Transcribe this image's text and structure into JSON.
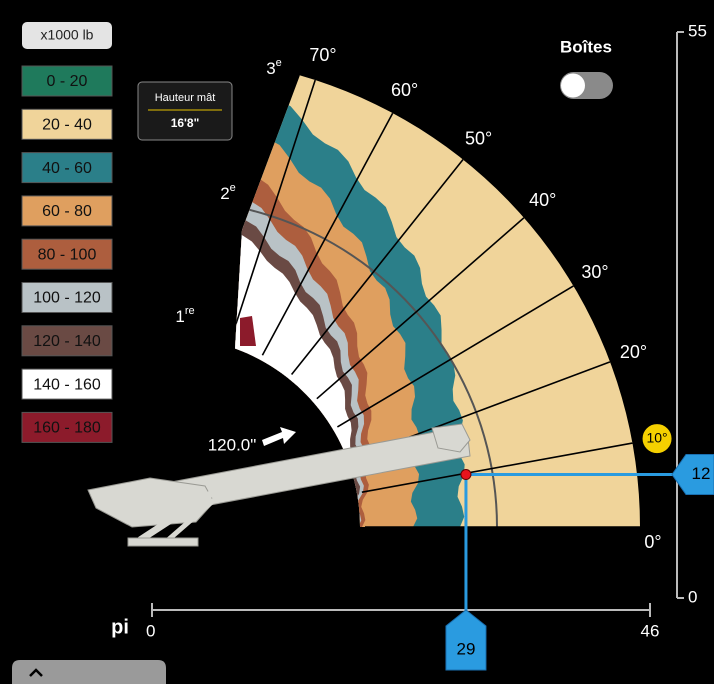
{
  "legend": {
    "title": "x1000 lb",
    "items": [
      {
        "label": "0 - 20",
        "color": "#1f7a5c"
      },
      {
        "label": "20 - 40",
        "color": "#f0d49a"
      },
      {
        "label": "40 - 60",
        "color": "#2b7f89"
      },
      {
        "label": "60 - 80",
        "color": "#df9f5f"
      },
      {
        "label": "80 - 100",
        "color": "#ad5e3e"
      },
      {
        "label": "100 - 120",
        "color": "#b9c2c6"
      },
      {
        "label": "120 - 140",
        "color": "#6a4a44"
      },
      {
        "label": "140 - 160",
        "color": "#ffffff"
      },
      {
        "label": "160 - 180",
        "color": "#8c1b2b"
      }
    ]
  },
  "mast_height": {
    "label": "Hauteur mât",
    "value": "16'8\""
  },
  "toggle": {
    "label": "Boîtes",
    "on": false
  },
  "sections": [
    {
      "number": "1",
      "suffix": "re"
    },
    {
      "number": "2",
      "suffix": "e"
    },
    {
      "number": "3",
      "suffix": "e"
    }
  ],
  "angles": [
    {
      "value": 0,
      "label": "0°"
    },
    {
      "value": 10,
      "label": "10°",
      "highlight": true
    },
    {
      "value": 20,
      "label": "20°"
    },
    {
      "value": 30,
      "label": "30°"
    },
    {
      "value": 40,
      "label": "40°"
    },
    {
      "value": 50,
      "label": "50°"
    },
    {
      "value": 60,
      "label": "60°"
    },
    {
      "value": 70,
      "label": "70°"
    }
  ],
  "boom_extension": "120.0\"",
  "unit": "pi",
  "height_axis": {
    "lim": [
      0,
      55
    ]
  },
  "radius_axis": {
    "lim": [
      0,
      46
    ]
  },
  "load_point": {
    "radius": 29,
    "height": 12
  }
}
